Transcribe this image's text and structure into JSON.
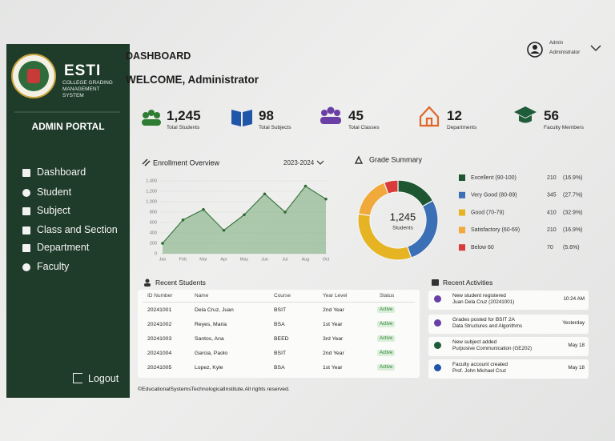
{
  "sidebar": {
    "brand": "ESTI",
    "subtitle": "COLLEGE GRADING MANAGEMENT SYSTEM",
    "portal": "ADMIN PORTAL",
    "nav": [
      "Dashboard",
      "Student",
      "Subject",
      "Class and Section",
      "Department",
      "Faculty"
    ],
    "logout": "Logout"
  },
  "header": {
    "title": "DASHBOARD",
    "welcome": "WELCOME, Administrator",
    "user_name": "Admin",
    "user_role": "Administrator"
  },
  "stats": [
    {
      "value": "1,245",
      "label": "Total Students"
    },
    {
      "value": "98",
      "label": "Total Subjects"
    },
    {
      "value": "45",
      "label": "Total Classes"
    },
    {
      "value": "12",
      "label": "Departments"
    },
    {
      "value": "56",
      "label": "Faculty Members"
    }
  ],
  "enrollment_chart": {
    "type": "area",
    "title": "Enrollment Overview",
    "period": "2023-2024",
    "categories": [
      "Jan",
      "Feb",
      "Mar",
      "Apr",
      "May",
      "Jun",
      "Jul",
      "Aug",
      "Oct"
    ],
    "values": [
      200,
      650,
      850,
      450,
      750,
      1150,
      800,
      1300,
      1050
    ],
    "ylim": [
      0,
      1400
    ],
    "yticks": [
      0,
      200,
      400,
      600,
      800,
      {
        "value": 1000,
        "label": "1,000"
      },
      {
        "value": 1200,
        "label": "1,200"
      },
      {
        "value": 1400,
        "label": "1,400"
      }
    ],
    "color": "#5b9a5e",
    "grid": true
  },
  "grade_chart": {
    "type": "donut",
    "title": "Grade Summary",
    "center_value": "1,245",
    "center_label": "Students",
    "categories": [
      "Excellent (90-100)",
      "Very Good (80-89)",
      "Good (70-79)",
      "Satisfactory (60-69)",
      "Below 60"
    ],
    "values": [
      210,
      345,
      410,
      210,
      70
    ],
    "percent_labels": [
      "(16.9%)",
      "(27.7%)",
      "(32.9%)",
      "(16.9%)",
      "(5.6%)"
    ],
    "colors": [
      "#1e5631",
      "#3b6fb6",
      "#e6b323",
      "#f0a93a",
      "#d93a3a"
    ]
  },
  "recent_students": {
    "title": "Recent Students",
    "columns": [
      "ID Number",
      "Name",
      "Course",
      "Year Level",
      "Status"
    ],
    "rows": [
      [
        "20241001",
        "Dela Cruz, Juan",
        "BSIT",
        "2nd Year",
        "Active"
      ],
      [
        "20241002",
        "Reyes, Maria",
        "BSA",
        "1st Year",
        "Active"
      ],
      [
        "20241003",
        "Santos, Ana",
        "BEED",
        "3rd Year",
        "Active"
      ],
      [
        "20241004",
        "Garcia, Paolo",
        "BSIT",
        "2nd Year",
        "Active"
      ],
      [
        "20241005",
        "Lopez, Kyle",
        "BSA",
        "1st Year",
        "Active"
      ]
    ]
  },
  "recent_activities": {
    "title": "Recent Activities",
    "items": [
      {
        "title": "New student registered",
        "detail": "Juan Dela Cruz (20241001)",
        "time": "10:24 AM"
      },
      {
        "title": "Grades posted for BSIT 2A",
        "detail": "Data Structures and Algorithms",
        "time": "Yesterday"
      },
      {
        "title": "New subject added",
        "detail": "Purposive Communication (GE202)",
        "time": "May 18"
      },
      {
        "title": "Faculty account created",
        "detail": "Prof. John Michael Cruz",
        "time": "May 18"
      }
    ]
  },
  "footer": "©EducationalSystemsTechnologicalInstitute.All rights reserved."
}
